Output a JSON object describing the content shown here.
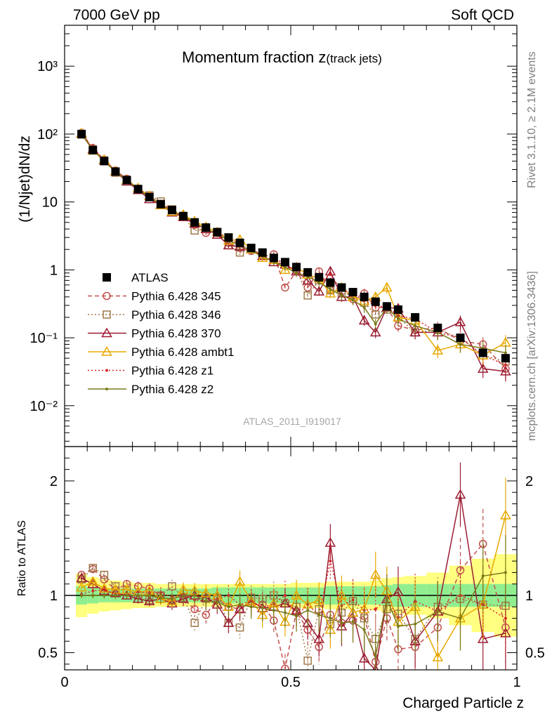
{
  "header": {
    "left": "7000 GeV pp",
    "right": "Soft QCD"
  },
  "side_labels": {
    "rivet": "Rivet 3.1.10, ≥ 2.1M events",
    "source": "mcplots.cern.ch [arXiv:1306.3436]"
  },
  "chart_data": [
    {
      "type": "scatter",
      "panel": "main",
      "title_main": "Momentum fraction z",
      "title_sub": "(track jets)",
      "analysis_tag": "ATLAS_2011_I919017",
      "ylabel": "(1/Njet)dN/dz",
      "xlabel": "",
      "xlim": [
        0,
        1
      ],
      "ylim": [
        0.0025,
        4000
      ],
      "yscale": "log",
      "y_tick_labels": [
        "10⁻²",
        "10⁻¹",
        "1",
        "10",
        "10²",
        "10³"
      ],
      "x": [
        0.0375,
        0.0625,
        0.0875,
        0.1125,
        0.1375,
        0.1625,
        0.1875,
        0.2125,
        0.2375,
        0.2625,
        0.2875,
        0.3125,
        0.3375,
        0.3625,
        0.3875,
        0.4125,
        0.4375,
        0.4625,
        0.4875,
        0.5125,
        0.5375,
        0.5625,
        0.5875,
        0.6125,
        0.6375,
        0.6625,
        0.6875,
        0.7125,
        0.7375,
        0.775,
        0.825,
        0.875,
        0.925,
        0.975
      ],
      "series": [
        {
          "name": "ATLAS",
          "color": "#000000",
          "marker": "square-filled",
          "line": "none",
          "values": [
            100,
            58,
            40,
            28,
            21,
            15.5,
            11.8,
            9.3,
            7.6,
            6.2,
            5.0,
            4.2,
            3.6,
            3.0,
            2.5,
            2.1,
            1.8,
            1.5,
            1.3,
            1.1,
            0.92,
            0.78,
            0.65,
            0.55,
            0.47,
            0.4,
            0.34,
            0.29,
            0.26,
            0.2,
            0.14,
            0.1,
            0.06,
            0.05
          ]
        },
        {
          "name": "Pythia 6.428 345",
          "color": "#c0504d",
          "marker": "circle-open",
          "line": "dashed",
          "values": [
            104,
            62,
            42,
            29,
            22,
            15.2,
            12.3,
            9.0,
            7.8,
            6.0,
            4.6,
            3.5,
            3.5,
            2.5,
            2.1,
            1.9,
            1.6,
            1.7,
            0.55,
            0.95,
            0.55,
            0.95,
            0.5,
            0.55,
            0.37,
            0.45,
            0.28,
            0.28,
            0.15,
            0.13,
            0.14,
            0.09,
            0.08,
            0.035
          ]
        },
        {
          "name": "Pythia 6.428 346",
          "color": "#a0784a",
          "marker": "square-open",
          "line": "dotted",
          "values": [
            98,
            60,
            41,
            27,
            21,
            15,
            12.5,
            10.2,
            7.8,
            6.1,
            3.8,
            4.0,
            3.5,
            2.3,
            1.8,
            2.0,
            1.7,
            1.5,
            1.2,
            1.0,
            0.42,
            0.7,
            0.5,
            0.45,
            0.43,
            0.33,
            0.22,
            0.26,
            0.2,
            0.12,
            0.13,
            0.1,
            0.055,
            0.045
          ]
        },
        {
          "name": "Pythia 6.428 370",
          "color": "#9b1c31",
          "marker": "triangle-open",
          "line": "solid",
          "values": [
            102,
            60,
            41,
            28,
            20,
            15,
            11,
            9.0,
            7.0,
            6.0,
            4.8,
            4.0,
            3.3,
            2.3,
            2.2,
            2.0,
            1.6,
            1.3,
            1.2,
            0.95,
            0.7,
            0.48,
            0.95,
            0.4,
            0.4,
            0.18,
            0.12,
            0.28,
            0.27,
            0.12,
            0.12,
            0.17,
            0.035,
            0.032
          ]
        },
        {
          "name": "Pythia 6.428 ambt1",
          "color": "#e8a800",
          "marker": "triangle-open",
          "line": "solid",
          "values": [
            103,
            57,
            42,
            28,
            21,
            16,
            12.2,
            9.0,
            7.2,
            6.5,
            5.2,
            4.3,
            3.6,
            2.7,
            2.8,
            2.0,
            1.5,
            1.4,
            1.0,
            1.1,
            0.85,
            0.75,
            0.45,
            0.55,
            0.4,
            0.35,
            0.4,
            0.55,
            0.2,
            0.18,
            0.065,
            0.08,
            0.055,
            0.085
          ]
        },
        {
          "name": "Pythia 6.428 z1",
          "color": "#d62728",
          "marker": "dot",
          "line": "dotted",
          "values": [
            101,
            60,
            42,
            28,
            21,
            16,
            12,
            9.5,
            7.5,
            6.3,
            4.8,
            4.0,
            3.5,
            3.0,
            2.3,
            2.0,
            1.6,
            1.4,
            1.3,
            0.9,
            0.85,
            0.65,
            0.85,
            0.5,
            0.45,
            0.35,
            0.3,
            0.28,
            0.21,
            0.19,
            0.12,
            0.1,
            0.055,
            0.04
          ]
        },
        {
          "name": "Pythia 6.428 z2",
          "color": "#7a7a1a",
          "marker": "dot",
          "line": "solid",
          "values": [
            100,
            58,
            40,
            28,
            21,
            15.5,
            11.8,
            9.1,
            7.4,
            6.2,
            5.0,
            4.0,
            3.4,
            2.7,
            2.3,
            1.9,
            1.6,
            1.3,
            1.1,
            0.9,
            0.8,
            0.65,
            0.52,
            0.42,
            0.36,
            0.28,
            0.16,
            0.28,
            0.19,
            0.15,
            0.12,
            0.08,
            0.07,
            0.06
          ]
        }
      ],
      "legend_position": "middle-left"
    },
    {
      "type": "scatter",
      "panel": "ratio",
      "ylabel": "Ratio to ATLAS",
      "xlabel": "Charged Particle z",
      "xlim": [
        0,
        1
      ],
      "ylim": [
        0.35,
        2.3
      ],
      "x_tick_labels": [
        "0",
        "0.5",
        "1"
      ],
      "y_tick_labels": [
        "0.5",
        "1",
        "2"
      ],
      "reference_line": 1,
      "bands": {
        "inner_color": "#90ee90",
        "outer_color": "#ffff80",
        "edges": [
          0.025,
          0.05,
          0.075,
          0.1,
          0.125,
          0.15,
          0.175,
          0.2,
          0.225,
          0.25,
          0.275,
          0.3,
          0.325,
          0.35,
          0.375,
          0.4,
          0.425,
          0.45,
          0.475,
          0.5,
          0.525,
          0.55,
          0.575,
          0.6,
          0.625,
          0.65,
          0.675,
          0.7,
          0.725,
          0.75,
          0.8,
          0.85,
          0.9,
          0.95,
          1.0
        ],
        "inner_half": [
          0.08,
          0.07,
          0.06,
          0.06,
          0.06,
          0.06,
          0.06,
          0.06,
          0.06,
          0.06,
          0.06,
          0.06,
          0.07,
          0.07,
          0.07,
          0.07,
          0.07,
          0.07,
          0.07,
          0.07,
          0.07,
          0.07,
          0.08,
          0.08,
          0.08,
          0.08,
          0.08,
          0.09,
          0.1,
          0.1,
          0.1,
          0.1,
          0.1,
          0.1
        ],
        "outer_half": [
          0.19,
          0.16,
          0.14,
          0.13,
          0.12,
          0.11,
          0.11,
          0.1,
          0.1,
          0.1,
          0.1,
          0.1,
          0.1,
          0.1,
          0.1,
          0.1,
          0.1,
          0.1,
          0.1,
          0.11,
          0.11,
          0.11,
          0.12,
          0.12,
          0.12,
          0.12,
          0.13,
          0.15,
          0.16,
          0.17,
          0.2,
          0.26,
          0.32,
          0.36
        ]
      },
      "series": [
        {
          "name": "Pythia 6.428 345",
          "values": [
            1.18,
            1.23,
            1.14,
            1.05,
            1.1,
            1.08,
            1.06,
            1.0,
            0.95,
            0.97,
            0.88,
            0.83,
            0.97,
            0.9,
            0.88,
            0.93,
            0.92,
            0.78,
            0.36,
            0.86,
            0.7,
            0.55,
            0.83,
            0.76,
            0.78,
            0.82,
            0.42,
            0.8,
            0.53,
            0.55,
            0.72,
            1.22,
            1.45,
            0.72
          ]
        },
        {
          "name": "Pythia 6.428 346",
          "values": [
            1.14,
            1.24,
            1.18,
            1.08,
            1.05,
            1.0,
            0.96,
            1.0,
            1.08,
            0.98,
            0.76,
            0.97,
            0.98,
            0.76,
            0.72,
            0.98,
            0.97,
            1.0,
            0.93,
            0.9,
            0.43,
            0.88,
            0.75,
            0.85,
            0.95,
            0.8,
            0.62,
            0.88,
            0.84,
            0.62,
            0.9,
            0.97,
            0.92,
            0.91
          ]
        },
        {
          "name": "Pythia 6.428 370",
          "values": [
            1.15,
            1.1,
            1.04,
            1.02,
            1.0,
            0.97,
            0.95,
            0.97,
            0.93,
            0.97,
            1.0,
            0.98,
            0.92,
            0.76,
            0.88,
            0.95,
            0.89,
            0.9,
            0.93,
            0.87,
            0.76,
            0.62,
            1.46,
            0.73,
            0.85,
            0.45,
            0.35,
            0.97,
            1.03,
            0.6,
            0.86,
            1.88,
            0.62,
            0.67
          ]
        },
        {
          "name": "Pythia 6.428 ambt1",
          "values": [
            1.07,
            1.12,
            1.06,
            1.05,
            1.05,
            1.03,
            1.04,
            0.97,
            0.95,
            1.05,
            1.04,
            1.02,
            1.0,
            0.9,
            1.12,
            0.95,
            0.83,
            0.93,
            0.77,
            1.0,
            0.92,
            0.96,
            0.7,
            1.0,
            0.85,
            0.88,
            1.18,
            1.04,
            0.77,
            0.9,
            0.46,
            0.8,
            0.92,
            1.7
          ]
        },
        {
          "name": "Pythia 6.428 z1",
          "values": [
            1.01,
            1.04,
            1.05,
            1.01,
            1.0,
            1.03,
            1.02,
            1.02,
            0.99,
            1.01,
            0.96,
            0.95,
            0.97,
            1.0,
            0.92,
            0.95,
            0.89,
            0.93,
            1.0,
            0.82,
            0.92,
            0.83,
            1.3,
            0.91,
            0.96,
            0.87,
            0.88,
            0.97,
            0.81,
            0.95,
            0.86,
            1.0,
            0.92,
            0.8
          ]
        },
        {
          "name": "Pythia 6.428 z2",
          "values": [
            1.0,
            1.0,
            1.0,
            1.0,
            1.0,
            1.0,
            1.0,
            0.98,
            0.97,
            1.0,
            1.0,
            0.95,
            0.94,
            0.9,
            0.92,
            0.9,
            0.89,
            0.87,
            0.85,
            0.82,
            0.87,
            0.83,
            0.8,
            0.76,
            0.77,
            0.7,
            0.47,
            0.97,
            0.73,
            0.75,
            0.86,
            0.8,
            1.17,
            1.2
          ]
        }
      ]
    }
  ]
}
